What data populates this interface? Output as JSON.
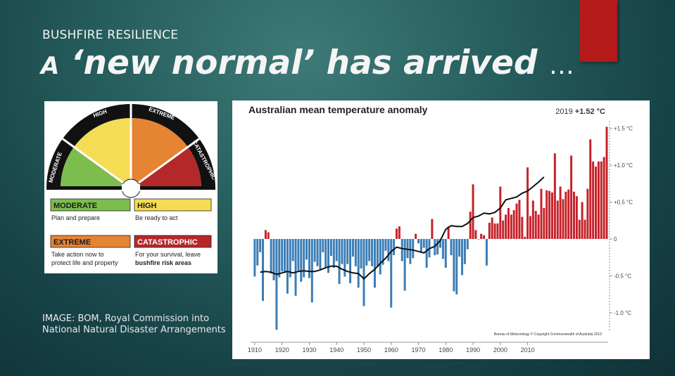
{
  "slide": {
    "kicker": "BUSHFIRE RESILIENCE",
    "title_lead": "A",
    "title_main": "‘new normal’ has arrived",
    "title_ellipsis": "…",
    "caption_line1": "IMAGE:  BOM, Royal Commission into",
    "caption_line2": "National Natural Disaster Arrangements",
    "accent_color": "#b41a1a"
  },
  "fire_danger": {
    "gauge_labels": [
      "MODERATE",
      "HIGH",
      "EXTREME",
      "CATASTROPHIC"
    ],
    "colors": {
      "moderate": "#7cbd4e",
      "high": "#f5dc55",
      "extreme": "#e58433",
      "catastrophic": "#b5282a"
    },
    "legend": [
      {
        "name": "MODERATE",
        "text1": "Plan and prepare",
        "text2": ""
      },
      {
        "name": "HIGH",
        "text1": "Be ready to act",
        "text2": ""
      },
      {
        "name": "EXTREME",
        "text1": "Take action now to",
        "text2": "protect life and property"
      },
      {
        "name": "CATASTROPHIC",
        "text1": "For your survival, leave",
        "text2": "bushfire risk areas"
      }
    ]
  },
  "chart_data": {
    "type": "bar",
    "title": "Australian mean temperature anomaly",
    "headline_prefix": "2019",
    "headline_value": "+1.52 °C",
    "credit": "Bureau of Meteorology © Copyright Commonwealth of Australia 2019",
    "x_ticks": [
      "1910",
      "1920",
      "1930",
      "1940",
      "1950",
      "1960",
      "1970",
      "1980",
      "1990",
      "2000",
      "2010"
    ],
    "y_ticks": [
      "+1.5 °C",
      "+1.0 °C",
      "+0.5 °C",
      "0",
      "-0.5 °C",
      "-1.0 °C"
    ],
    "y_tick_values": [
      1.5,
      1.0,
      0.5,
      0,
      -0.5,
      -1.0
    ],
    "ylim": [
      -1.25,
      1.6
    ],
    "x_start": 1910,
    "pos_color": "#c6222a",
    "neg_color": "#3a7db5",
    "years_first": 1910,
    "values": [
      -0.51,
      -0.36,
      -0.18,
      -0.84,
      0.12,
      0.09,
      -0.47,
      -0.56,
      -1.23,
      -0.52,
      -0.44,
      -0.46,
      -0.74,
      -0.52,
      -0.3,
      -0.77,
      -0.43,
      -0.58,
      -0.52,
      -0.28,
      -0.53,
      -0.86,
      -0.31,
      -0.37,
      -0.41,
      -0.18,
      -0.38,
      -0.46,
      -0.23,
      -0.39,
      -0.3,
      -0.61,
      -0.34,
      -0.51,
      -0.34,
      -0.6,
      -0.24,
      -0.37,
      -0.66,
      -0.4,
      -0.91,
      -0.36,
      -0.3,
      -0.37,
      -0.66,
      -0.38,
      -0.48,
      -0.35,
      -0.16,
      -0.3,
      -0.93,
      -0.22,
      0.14,
      0.17,
      -0.3,
      -0.7,
      -0.26,
      -0.34,
      -0.26,
      0.07,
      -0.06,
      -0.17,
      -0.12,
      -0.39,
      -0.25,
      0.27,
      -0.22,
      -0.21,
      -0.12,
      -0.27,
      -0.39,
      0.17,
      -0.22,
      -0.71,
      -0.75,
      -0.24,
      -0.49,
      -0.34,
      -0.14,
      0.37,
      0.74,
      0.12,
      0.0,
      0.07,
      0.05,
      -0.36,
      0.22,
      0.29,
      0.21,
      0.21,
      0.71,
      0.25,
      0.33,
      0.42,
      0.33,
      0.39,
      0.48,
      0.53,
      0.3,
      0.03,
      0.97,
      0.31,
      0.52,
      0.38,
      0.33,
      0.68,
      0.42,
      0.66,
      0.65,
      0.63,
      1.16,
      0.52,
      0.71,
      0.54,
      0.64,
      0.67,
      1.13,
      0.64,
      0.58,
      0.26,
      0.5,
      0.26,
      0.68,
      1.35,
      1.05,
      0.98,
      1.05,
      1.05,
      1.11,
      1.52
    ],
    "smooth_line": [
      [
        1912,
        -0.45
      ],
      [
        1914,
        -0.44
      ],
      [
        1916,
        -0.45
      ],
      [
        1918,
        -0.48
      ],
      [
        1920,
        -0.46
      ],
      [
        1922,
        -0.44
      ],
      [
        1924,
        -0.46
      ],
      [
        1926,
        -0.44
      ],
      [
        1928,
        -0.43
      ],
      [
        1930,
        -0.44
      ],
      [
        1932,
        -0.44
      ],
      [
        1934,
        -0.42
      ],
      [
        1936,
        -0.39
      ],
      [
        1938,
        -0.37
      ],
      [
        1940,
        -0.37
      ],
      [
        1942,
        -0.41
      ],
      [
        1944,
        -0.44
      ],
      [
        1946,
        -0.46
      ],
      [
        1948,
        -0.47
      ],
      [
        1950,
        -0.54
      ],
      [
        1952,
        -0.47
      ],
      [
        1954,
        -0.41
      ],
      [
        1956,
        -0.33
      ],
      [
        1958,
        -0.26
      ],
      [
        1960,
        -0.17
      ],
      [
        1962,
        -0.11
      ],
      [
        1964,
        -0.13
      ],
      [
        1966,
        -0.14
      ],
      [
        1968,
        -0.15
      ],
      [
        1970,
        -0.17
      ],
      [
        1972,
        -0.19
      ],
      [
        1974,
        -0.13
      ],
      [
        1976,
        -0.1
      ],
      [
        1978,
        -0.02
      ],
      [
        1980,
        0.13
      ],
      [
        1982,
        0.18
      ],
      [
        1984,
        0.17
      ],
      [
        1986,
        0.17
      ],
      [
        1988,
        0.21
      ],
      [
        1990,
        0.29
      ],
      [
        1992,
        0.31
      ],
      [
        1994,
        0.35
      ],
      [
        1996,
        0.34
      ],
      [
        1998,
        0.36
      ],
      [
        2000,
        0.42
      ],
      [
        2002,
        0.53
      ],
      [
        2004,
        0.55
      ],
      [
        2006,
        0.57
      ],
      [
        2008,
        0.62
      ],
      [
        2010,
        0.65
      ],
      [
        2012,
        0.71
      ],
      [
        2014,
        0.77
      ],
      [
        2016,
        0.84
      ]
    ]
  }
}
